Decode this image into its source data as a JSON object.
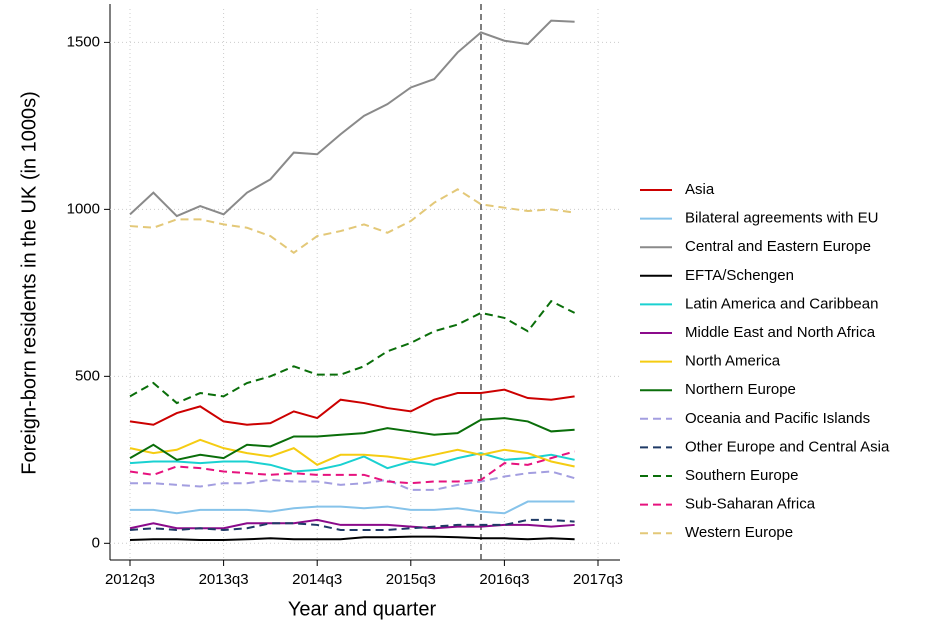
{
  "chart_data": {
    "type": "line",
    "x_label": "Year and quarter",
    "y_label": "Foreign-born residents in the UK (in 1000s)",
    "x": [
      "2012q3",
      "2012q4",
      "2013q1",
      "2013q2",
      "2013q3",
      "2013q4",
      "2014q1",
      "2014q2",
      "2014q3",
      "2014q4",
      "2015q1",
      "2015q2",
      "2015q3",
      "2015q4",
      "2016q1",
      "2016q2",
      "2016q3",
      "2016q4",
      "2017q1",
      "2017q2"
    ],
    "xlim": [
      "2012q3",
      "2017q3"
    ],
    "xticks": [
      "2012q3",
      "2013q3",
      "2014q3",
      "2015q3",
      "2016q3",
      "2017q3"
    ],
    "ylim": [
      -50,
      1600
    ],
    "yticks": [
      0,
      500,
      1000,
      1500
    ],
    "grid": true,
    "vline": "2016q2",
    "legend": "right",
    "series": [
      {
        "name": "Asia",
        "color": "#cc0000",
        "dash": false,
        "values": [
          365,
          355,
          390,
          410,
          365,
          355,
          360,
          395,
          375,
          430,
          420,
          405,
          395,
          430,
          450,
          450,
          460,
          435,
          430,
          440
        ]
      },
      {
        "name": "Bilateral agreements with EU",
        "color": "#86c3ea",
        "dash": false,
        "values": [
          100,
          100,
          90,
          100,
          100,
          100,
          95,
          105,
          110,
          110,
          105,
          110,
          100,
          100,
          105,
          95,
          90,
          125,
          125,
          125
        ]
      },
      {
        "name": "Central and Eastern Europe",
        "color": "#8a8a8a",
        "dash": false,
        "values": [
          985,
          1050,
          980,
          1010,
          985,
          1050,
          1090,
          1170,
          1165,
          1225,
          1280,
          1315,
          1365,
          1390,
          1470,
          1530,
          1505,
          1495,
          1565,
          1562
        ]
      },
      {
        "name": "EFTA/Schengen",
        "color": "#000000",
        "dash": false,
        "values": [
          10,
          12,
          12,
          10,
          10,
          12,
          15,
          12,
          12,
          12,
          18,
          18,
          20,
          20,
          18,
          15,
          15,
          12,
          15,
          12
        ]
      },
      {
        "name": "Latin America and Caribbean",
        "color": "#1ad1d1",
        "dash": false,
        "values": [
          240,
          245,
          245,
          240,
          245,
          245,
          235,
          215,
          220,
          235,
          260,
          225,
          245,
          235,
          255,
          270,
          250,
          255,
          265,
          250
        ]
      },
      {
        "name": "Middle East and North Africa",
        "color": "#8b0a8b",
        "dash": false,
        "values": [
          45,
          60,
          45,
          45,
          45,
          60,
          60,
          60,
          70,
          55,
          55,
          55,
          50,
          45,
          50,
          50,
          55,
          55,
          50,
          55
        ]
      },
      {
        "name": "North America",
        "color": "#f5cc12",
        "dash": false,
        "values": [
          285,
          270,
          280,
          310,
          285,
          270,
          260,
          285,
          235,
          265,
          265,
          260,
          250,
          265,
          280,
          265,
          280,
          270,
          245,
          230
        ]
      },
      {
        "name": "Northern Europe",
        "color": "#0a6e0a",
        "dash": false,
        "values": [
          255,
          295,
          250,
          265,
          255,
          295,
          290,
          320,
          320,
          325,
          330,
          345,
          335,
          325,
          330,
          370,
          375,
          365,
          335,
          340
        ]
      },
      {
        "name": "Oceania and Pacific Islands",
        "color": "#a39ee0",
        "dash": true,
        "values": [
          180,
          180,
          175,
          170,
          180,
          180,
          190,
          185,
          185,
          175,
          180,
          190,
          160,
          160,
          175,
          185,
          200,
          210,
          215,
          195
        ]
      },
      {
        "name": "Other Europe and Central Asia",
        "color": "#1f3a66",
        "dash": true,
        "values": [
          40,
          45,
          40,
          45,
          40,
          45,
          60,
          60,
          55,
          40,
          40,
          40,
          45,
          50,
          55,
          55,
          55,
          70,
          70,
          65
        ]
      },
      {
        "name": "Southern Europe",
        "color": "#0a6e0a",
        "dash": true,
        "values": [
          440,
          480,
          420,
          450,
          440,
          480,
          500,
          530,
          505,
          505,
          530,
          575,
          600,
          635,
          655,
          690,
          675,
          635,
          725,
          690
        ]
      },
      {
        "name": "Sub-Saharan Africa",
        "color": "#e6127e",
        "dash": true,
        "values": [
          215,
          205,
          230,
          225,
          215,
          210,
          205,
          210,
          205,
          205,
          205,
          185,
          180,
          185,
          185,
          190,
          240,
          235,
          255,
          275
        ]
      },
      {
        "name": "Western Europe",
        "color": "#e3c878",
        "dash": true,
        "values": [
          950,
          945,
          970,
          970,
          955,
          945,
          920,
          870,
          920,
          935,
          955,
          930,
          965,
          1020,
          1060,
          1015,
          1005,
          995,
          1000,
          990
        ]
      }
    ]
  }
}
